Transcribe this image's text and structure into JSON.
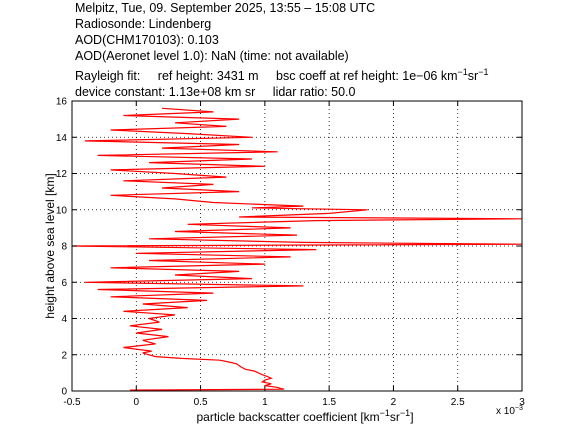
{
  "header": {
    "line1": "Melpitz, Tue, 09. September 2025, 13:55 – 15:08 UTC",
    "line2": "Radiosonde: Lindenberg",
    "line3": "AOD(CHM170103): 0.103",
    "line4": "AOD(Aeronet level 1.0): NaN   (time: not available)",
    "line5a": "Rayleigh fit:",
    "line5b": "ref height: 3431 m",
    "line5c": "bsc coeff at ref height: 1e−06 km",
    "line5c_sup1": "−1",
    "line5c_mid": "sr",
    "line5c_sup2": "−1",
    "line6a": "device constant: 1.13e+08 km sr",
    "line6b": "lidar ratio: 50.0"
  },
  "chart_data": {
    "type": "line",
    "xlabel": "particle backscatter coefficient [km",
    "xlabel_sup1": "−1",
    "xlabel_mid": "sr",
    "xlabel_sup2": "−1",
    "xlabel_end": "]",
    "ylabel": "height above sea level [km]",
    "x_scale_note": "x 10",
    "x_scale_exp": "−3",
    "xlim": [
      -0.5,
      3
    ],
    "ylim": [
      0,
      16
    ],
    "xticks": [
      "-0.5",
      "0",
      "0.5",
      "1",
      "1.5",
      "2",
      "2.5",
      "3"
    ],
    "yticks": [
      "0",
      "2",
      "4",
      "6",
      "8",
      "10",
      "12",
      "14",
      "16"
    ],
    "grid": true,
    "series_color": "#ff0000",
    "profile": {
      "y": [
        0.05,
        0.1,
        0.15,
        0.2,
        0.3,
        0.4,
        0.5,
        0.6,
        0.7,
        0.8,
        0.9,
        1.0,
        1.1,
        1.2,
        1.3,
        1.4,
        1.5,
        1.6,
        1.7,
        1.8,
        1.9,
        2.0,
        2.1,
        2.2,
        2.4,
        2.6,
        2.8,
        3.0,
        3.2,
        3.4,
        3.6,
        3.8,
        4.0,
        4.2,
        4.4,
        4.6,
        4.8,
        5.0,
        5.2,
        5.4,
        5.6,
        5.8,
        6.0,
        6.2,
        6.4,
        6.6,
        6.8,
        7.0,
        7.2,
        7.4,
        7.6,
        7.8,
        8.0,
        8.1,
        8.2,
        8.4,
        8.6,
        8.8,
        9.0,
        9.2,
        9.4,
        9.5,
        9.6,
        9.8,
        10.0,
        10.1,
        10.2,
        10.4,
        10.6,
        10.8,
        11.0,
        11.2,
        11.4,
        11.6,
        11.8,
        12.0,
        12.2,
        12.4,
        12.6,
        12.8,
        13.0,
        13.2,
        13.4,
        13.6,
        13.8,
        14.0,
        14.2,
        14.4,
        14.6,
        14.8,
        15.0,
        15.2,
        15.4,
        15.6
      ],
      "x": [
        -0.05,
        1.15,
        1.12,
        1.1,
        1.0,
        1.05,
        0.98,
        1.0,
        1.05,
        1.02,
        0.98,
        0.95,
        0.92,
        0.85,
        0.82,
        0.8,
        0.78,
        0.72,
        0.65,
        0.35,
        0.15,
        0.1,
        0.05,
        0.12,
        -0.1,
        0.15,
        0.05,
        0.25,
        0.0,
        0.2,
        -0.05,
        0.18,
        0.1,
        0.3,
        -0.1,
        0.4,
        0.05,
        0.55,
        -0.2,
        0.6,
        -0.3,
        1.3,
        -0.4,
        0.9,
        0.3,
        0.8,
        -0.2,
        1.0,
        0.1,
        1.2,
        0.0,
        1.4,
        -0.5,
        3.0,
        1.3,
        0.1,
        1.25,
        0.3,
        1.2,
        0.4,
        1.4,
        3.0,
        0.8,
        1.5,
        1.8,
        0.9,
        1.3,
        0.6,
        0.3,
        -0.2,
        0.8,
        0.2,
        0.6,
        -0.1,
        0.7,
        0.3,
        -0.2,
        1.0,
        0.1,
        0.9,
        -0.3,
        1.1,
        0.2,
        0.8,
        -0.4,
        0.9,
        0.4,
        -0.2,
        0.7,
        0.3,
        0.8,
        -0.1,
        0.6,
        0.2
      ]
    }
  }
}
